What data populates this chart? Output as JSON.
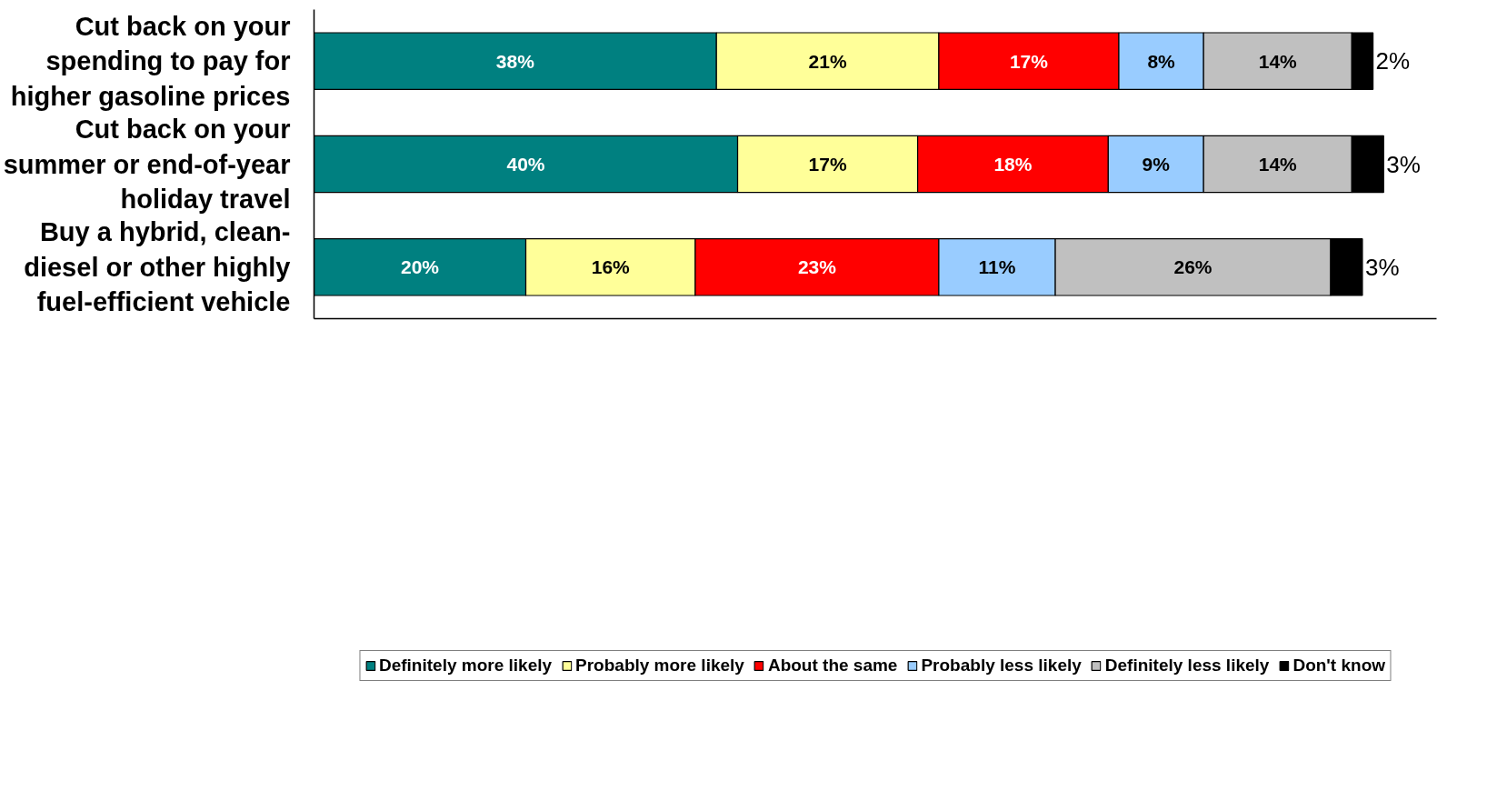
{
  "chart_data": {
    "type": "bar",
    "orientation": "horizontal",
    "stacked": true,
    "categories": [
      "Cut back on your spending to pay for higher gasoline prices",
      "Cut back on your summer or end-of-year holiday travel",
      "Buy a hybrid, clean-diesel or other highly fuel-efficient vehicle"
    ],
    "series": [
      {
        "name": "Definitely more likely",
        "color": "#008080",
        "values": [
          38,
          40,
          20
        ],
        "value_labels": [
          "38%",
          "40%",
          "20%"
        ]
      },
      {
        "name": "Probably more likely",
        "color": "#ffff99",
        "values": [
          21,
          17,
          16
        ],
        "value_labels": [
          "21%",
          "17%",
          "16%"
        ]
      },
      {
        "name": "About the same",
        "color": "#ff0000",
        "values": [
          17,
          18,
          23
        ],
        "value_labels": [
          "17%",
          "18%",
          "23%"
        ]
      },
      {
        "name": "Probably less likely",
        "color": "#99ccff",
        "values": [
          8,
          9,
          11
        ],
        "value_labels": [
          "8%",
          "9%",
          "11%"
        ]
      },
      {
        "name": "Definitely less likely",
        "color": "#c0c0c0",
        "values": [
          14,
          14,
          26
        ],
        "value_labels": [
          "14%",
          "14%",
          "26%"
        ]
      },
      {
        "name": "Don't know",
        "color": "#000000",
        "values": [
          2,
          3,
          3
        ],
        "value_labels": [
          "2%",
          "3%",
          "3%"
        ]
      }
    ],
    "xlim": [
      0,
      106
    ],
    "tick_labels": "y",
    "legend": "bottom",
    "grid": false
  }
}
